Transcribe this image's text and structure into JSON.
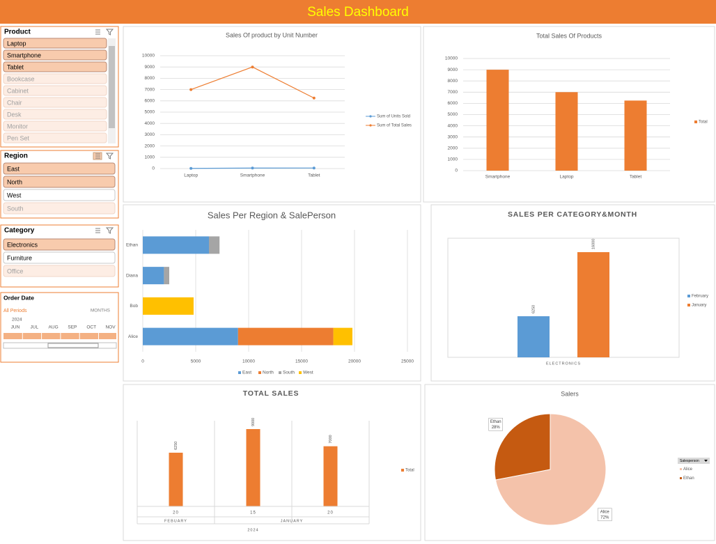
{
  "header": {
    "title": "Sales Dashboard"
  },
  "slicers": [
    {
      "title": "Product",
      "items": [
        {
          "label": "Laptop",
          "state": "selected"
        },
        {
          "label": "Smartphone",
          "state": "selected"
        },
        {
          "label": "Tablet",
          "state": "selected"
        },
        {
          "label": "Bookcase",
          "state": "no-data"
        },
        {
          "label": "Cabinet",
          "state": "no-data"
        },
        {
          "label": "Chair",
          "state": "no-data"
        },
        {
          "label": "Desk",
          "state": "no-data"
        },
        {
          "label": "Monitor",
          "state": "no-data"
        },
        {
          "label": "Pen Set",
          "state": "no-data"
        }
      ]
    },
    {
      "title": "Region",
      "items": [
        {
          "label": "East",
          "state": "selected"
        },
        {
          "label": "North",
          "state": "selected"
        },
        {
          "label": "West",
          "state": "available"
        },
        {
          "label": "South",
          "state": "no-data"
        }
      ]
    },
    {
      "title": "Category",
      "items": [
        {
          "label": "Electronics",
          "state": "selected"
        },
        {
          "label": "Furniture",
          "state": "available"
        },
        {
          "label": "Office",
          "state": "no-data"
        }
      ]
    }
  ],
  "timeline": {
    "title": "Order Date",
    "period": "All Periods",
    "unit": "MONTHS",
    "year": "2024",
    "months": [
      "JUN",
      "JUL",
      "AUG",
      "SEP",
      "OCT",
      "NOV"
    ]
  },
  "chart_data": [
    {
      "type": "line",
      "title": "Sales Of product by Unit Number",
      "categories": [
        "Laptop",
        "Smartphone",
        "Tablet"
      ],
      "series": [
        {
          "name": "Sum of Units Sold",
          "color": "#5B9BD5",
          "values": [
            15,
            45,
            50
          ]
        },
        {
          "name": "Sum of Total Sales",
          "color": "#ED7D31",
          "values": [
            7000,
            9000,
            6250
          ]
        }
      ],
      "ylim": [
        0,
        10000
      ],
      "yticks": [
        0,
        1000,
        2000,
        3000,
        4000,
        5000,
        6000,
        7000,
        8000,
        9000,
        10000
      ],
      "grid": true,
      "legend": "right"
    },
    {
      "type": "bar",
      "title": "Total Sales Of Products",
      "categories": [
        "Smartphone",
        "Laptop",
        "Tablet"
      ],
      "series": [
        {
          "name": "Total",
          "color": "#ED7D31",
          "values": [
            9000,
            7000,
            6250
          ]
        }
      ],
      "ylim": [
        0,
        10000
      ],
      "yticks": [
        0,
        1000,
        2000,
        3000,
        4000,
        5000,
        6000,
        7000,
        8000,
        9000,
        10000
      ],
      "grid": true,
      "legend": "right"
    },
    {
      "type": "bar",
      "orientation": "horizontal",
      "stacked": true,
      "title": "Sales Per Region & SalePerson",
      "categories": [
        "Ethan",
        "Diana",
        "Bob",
        "Alice"
      ],
      "series": [
        {
          "name": "East",
          "color": "#5B9BD5",
          "values": [
            6250,
            2000,
            null,
            9000
          ]
        },
        {
          "name": "North",
          "color": "#ED7D31",
          "values": [
            null,
            null,
            null,
            9000
          ]
        },
        {
          "name": "South",
          "color": "#A5A5A5",
          "values": [
            1000,
            500,
            null,
            null
          ]
        },
        {
          "name": "West",
          "color": "#FFC000",
          "values": [
            null,
            null,
            4800,
            1800
          ]
        }
      ],
      "xlim": [
        0,
        25000
      ],
      "xticks": [
        0,
        5000,
        10000,
        15000,
        20000,
        25000
      ],
      "grid": true,
      "legend": "bottom"
    },
    {
      "type": "bar",
      "title": "SALES PER CATEGORY&MONTH",
      "categories": [
        "ELECTRONICS"
      ],
      "series": [
        {
          "name": "February",
          "color": "#5B9BD5",
          "values": [
            6250
          ]
        },
        {
          "name": "January",
          "color": "#ED7D31",
          "values": [
            16000
          ]
        }
      ],
      "data_labels": true,
      "legend": "right"
    },
    {
      "type": "bar",
      "title": "TOTAL SALES",
      "groups": [
        {
          "label": "FEBUARY",
          "categories": [
            "20"
          ]
        },
        {
          "label": "JANUARY",
          "categories": [
            "15",
            "20"
          ]
        }
      ],
      "year": "2024",
      "series": [
        {
          "name": "Total",
          "color": "#ED7D31",
          "values": [
            6250,
            9000,
            7000
          ]
        }
      ],
      "data_labels": true,
      "legend": "right"
    },
    {
      "type": "pie",
      "title": "Salers",
      "legend_title": "Salesperson",
      "categories": [
        "Alice",
        "Ethan"
      ],
      "colors": [
        "#F4C2AA",
        "#C55A11"
      ],
      "values": [
        72,
        28
      ],
      "value_labels": [
        "72%",
        "28%"
      ],
      "legend": "right"
    }
  ]
}
